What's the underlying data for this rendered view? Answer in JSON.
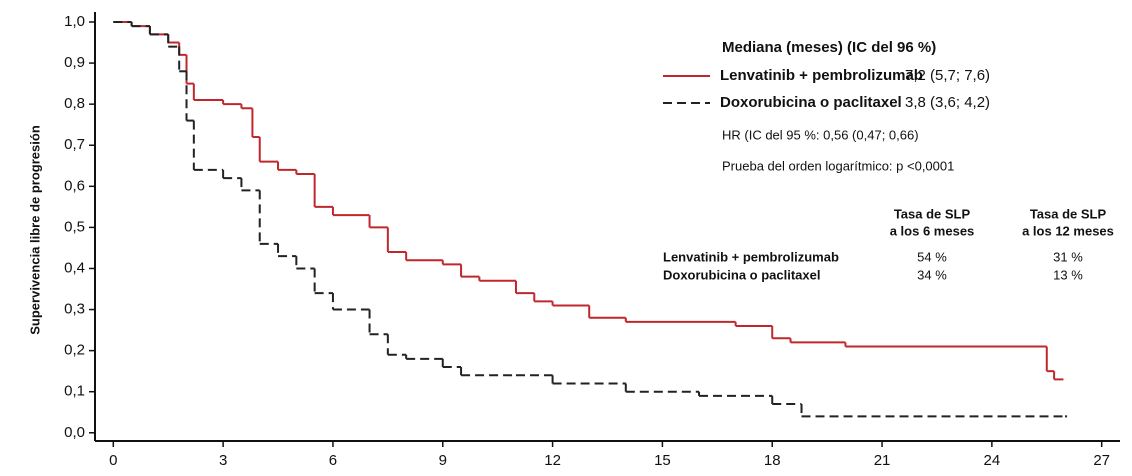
{
  "chart_data": {
    "type": "line",
    "step": true,
    "y_label": "Supervivencia libre de progresión",
    "xlim": [
      -0.5,
      27.5
    ],
    "ylim": [
      -0.02,
      1.0
    ],
    "xticks": [
      0,
      3,
      6,
      9,
      12,
      15,
      18,
      21,
      24,
      27
    ],
    "yticks": [
      {
        "value": 0.0,
        "label": "0,0"
      },
      {
        "value": 0.1,
        "label": "0,1"
      },
      {
        "value": 0.2,
        "label": "0,2"
      },
      {
        "value": 0.3,
        "label": "0,3"
      },
      {
        "value": 0.4,
        "label": "0,4"
      },
      {
        "value": 0.5,
        "label": "0,5"
      },
      {
        "value": 0.6,
        "label": "0,6"
      },
      {
        "value": 0.7,
        "label": "0,7"
      },
      {
        "value": 0.8,
        "label": "0,8"
      },
      {
        "value": 0.9,
        "label": "0,9"
      },
      {
        "value": 1.0,
        "label": "1,0"
      }
    ],
    "legend_title": "Mediana (meses) (IC del 96 %)",
    "series": [
      {
        "name": "Lenvatinib + pembrolizumab",
        "color": "#c0272d",
        "dash": false,
        "median": "7,2 (5,7; 7,6)",
        "x": [
          0,
          0.5,
          1,
          1.5,
          1.8,
          2,
          2.2,
          3,
          3.5,
          3.8,
          4,
          4.5,
          5,
          5.5,
          6,
          7,
          7.5,
          8,
          9,
          9.5,
          10,
          11,
          11.5,
          12,
          13,
          14,
          17,
          18,
          18.5,
          20,
          25.5,
          25.7,
          25.9
        ],
        "values": [
          1.0,
          0.99,
          0.97,
          0.95,
          0.92,
          0.85,
          0.81,
          0.8,
          0.79,
          0.72,
          0.66,
          0.64,
          0.63,
          0.55,
          0.53,
          0.5,
          0.44,
          0.42,
          0.41,
          0.38,
          0.37,
          0.34,
          0.32,
          0.31,
          0.28,
          0.27,
          0.26,
          0.23,
          0.22,
          0.21,
          0.15,
          0.13,
          0.13
        ]
      },
      {
        "name": "Doxorubicina o paclitaxel",
        "color": "#222222",
        "dash": true,
        "median": "3,8 (3,6; 4,2)",
        "x": [
          0,
          0.5,
          1,
          1.5,
          1.8,
          2,
          2.2,
          3,
          3.5,
          4,
          4.5,
          5,
          5.5,
          6,
          7,
          7.5,
          8,
          9,
          9.5,
          11,
          12,
          14,
          16,
          18,
          18.8,
          26
        ],
        "values": [
          1.0,
          0.99,
          0.97,
          0.94,
          0.88,
          0.76,
          0.64,
          0.62,
          0.59,
          0.46,
          0.43,
          0.4,
          0.34,
          0.3,
          0.24,
          0.19,
          0.18,
          0.16,
          0.14,
          0.14,
          0.12,
          0.1,
          0.09,
          0.07,
          0.04,
          0.04
        ]
      }
    ],
    "annotations": {
      "hr": "HR (IC del 95 %: 0,56 (0,47; 0,66)",
      "logrank": "Prueba del orden logarítmico: p <0,0001"
    },
    "rate_table": {
      "headers": [
        [
          "Tasa de SLP",
          "a los 6 meses"
        ],
        [
          "Tasa de SLP",
          "a los 12 meses"
        ]
      ],
      "rows": [
        [
          "54 %",
          "31 %"
        ],
        [
          "34 %",
          "13 %"
        ]
      ]
    }
  }
}
